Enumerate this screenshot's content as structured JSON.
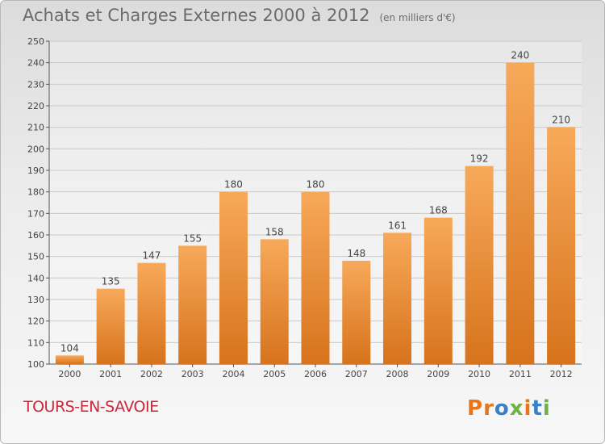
{
  "header": {
    "title": "Achats et Charges Externes 2000 à 2012",
    "unit": "(en milliers d'€)"
  },
  "footer": {
    "city": "TOURS-EN-SAVOIE",
    "logo": "Proxiti"
  },
  "colors": {
    "bar_top": "#f7a95a",
    "bar_bottom": "#d7731c",
    "city_text": "#d0263a",
    "logo_letters": [
      "#e8751a",
      "#e8751a",
      "#3b7fc4",
      "#6cb33f",
      "#e8751a",
      "#3b7fc4",
      "#6cb33f"
    ]
  },
  "chart_data": {
    "type": "bar",
    "title": "Achats et Charges Externes 2000 à 2012",
    "subtitle": "(en milliers d'€)",
    "categories": [
      "2000",
      "2001",
      "2002",
      "2003",
      "2004",
      "2005",
      "2006",
      "2007",
      "2008",
      "2009",
      "2010",
      "2011",
      "2012"
    ],
    "values": [
      104,
      135,
      147,
      155,
      180,
      158,
      180,
      148,
      161,
      168,
      192,
      240,
      210
    ],
    "data_labels": [
      "104",
      "135",
      "147",
      "155",
      "180",
      "158",
      "180",
      "148",
      "161",
      "168",
      "192",
      "240",
      "210"
    ],
    "ylim": [
      100,
      250
    ],
    "yticks": [
      100,
      110,
      120,
      130,
      140,
      150,
      160,
      170,
      180,
      190,
      200,
      210,
      220,
      230,
      240,
      250
    ],
    "grid": true,
    "xlabel": "",
    "ylabel": ""
  }
}
